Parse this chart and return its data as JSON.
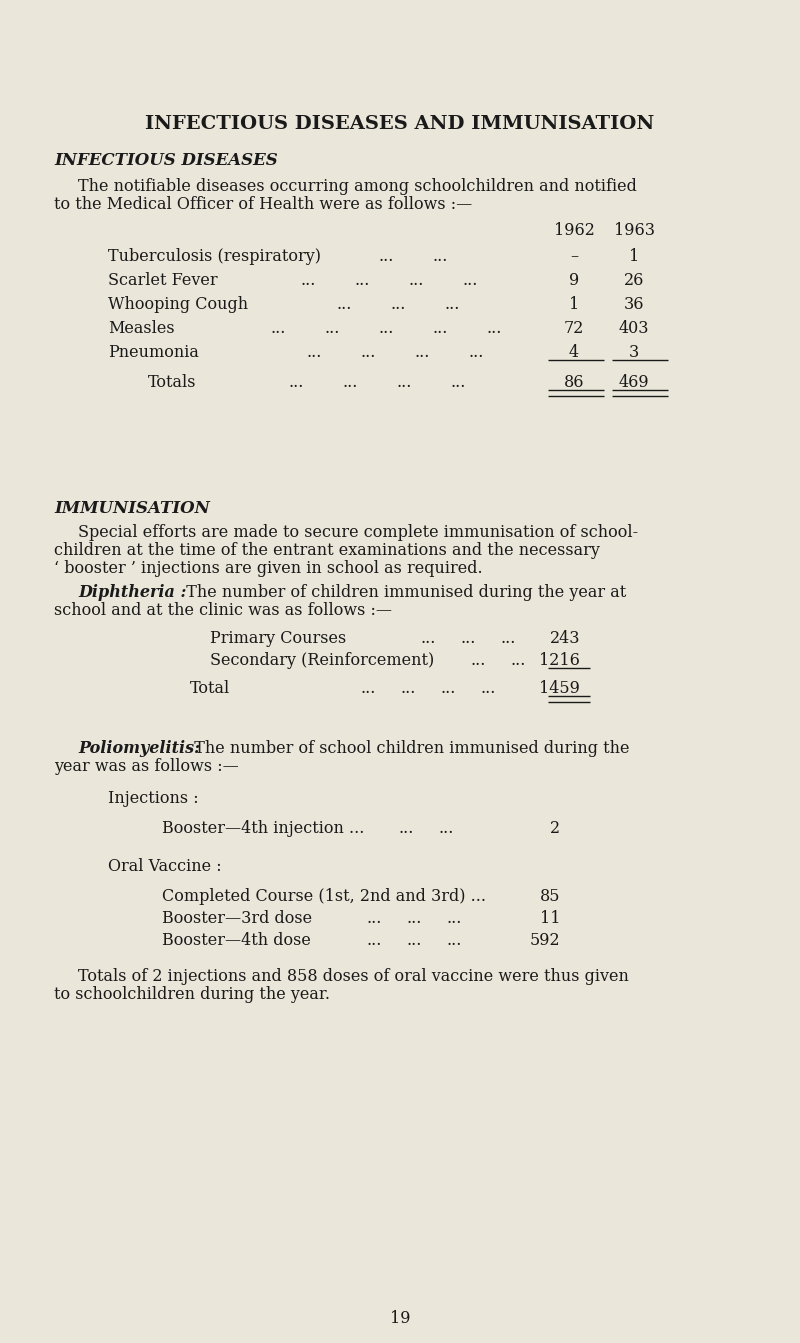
{
  "bg_color": "#eae6d9",
  "text_color": "#1a1a1a",
  "page_number": "19",
  "title": "INFECTIOUS DISEASES AND IMMUNISATION",
  "section1_heading": "INFECTIOUS DISEASES",
  "table_disease_names": [
    "Tuberculosis (respiratory)",
    "Scarlet Fever",
    "Whooping Cough",
    "Measles",
    "Pneumonia"
  ],
  "table_1962": [
    "–",
    "9",
    "1",
    "72",
    "4"
  ],
  "table_1963": [
    "1",
    "26",
    "36",
    "403",
    "3"
  ],
  "totals_1962": "86",
  "totals_1963": "469",
  "section2_heading": "IMMUNISATION",
  "diphtheria_primary": "243",
  "diphtheria_secondary": "1216",
  "diphtheria_total": "1459",
  "booster_4th_injection_value": "2",
  "oral_completed": "85",
  "oral_booster3": "11",
  "oral_booster4": "592"
}
